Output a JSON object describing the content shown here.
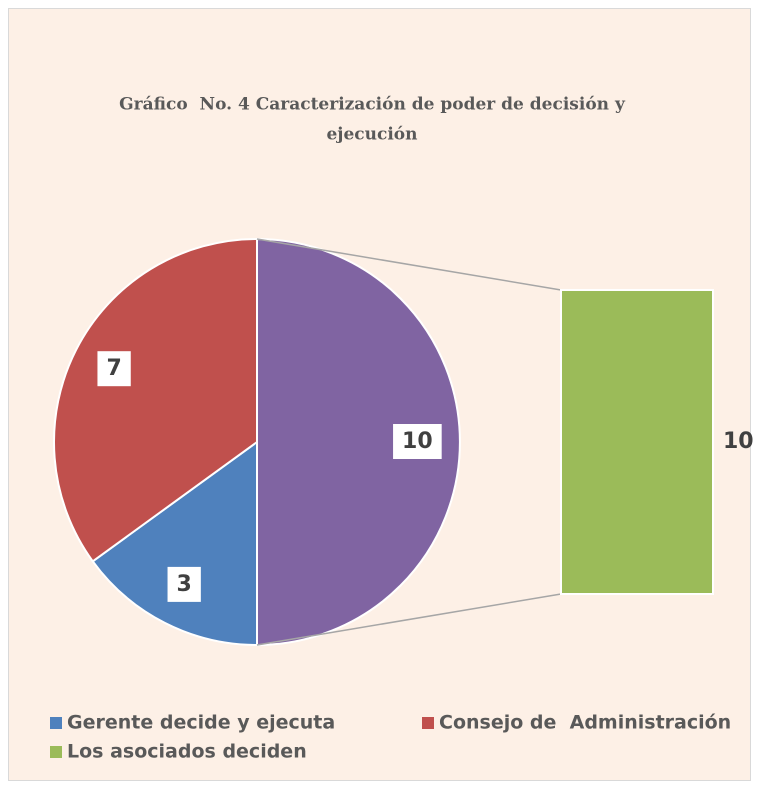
{
  "chart_data": {
    "type": "bar-of-pie",
    "title": "Gráfico  No. 4 Caracterización de poder de decisión y ejecución",
    "title_lines": [
      "Gráfico  No. 4 Caracterización de poder de decisión y",
      "ejecución"
    ],
    "categories": [
      "Gerente decide y ejecuta",
      "Consejo de  Administración",
      "Los asociados deciden"
    ],
    "values": [
      3,
      7,
      10
    ],
    "colors": [
      "#4f81bd",
      "#c0504d",
      "#9bbb59"
    ],
    "second_plot_count": 1,
    "other": {
      "value": 10,
      "color": "#8064a2"
    },
    "legend": "bottom"
  }
}
